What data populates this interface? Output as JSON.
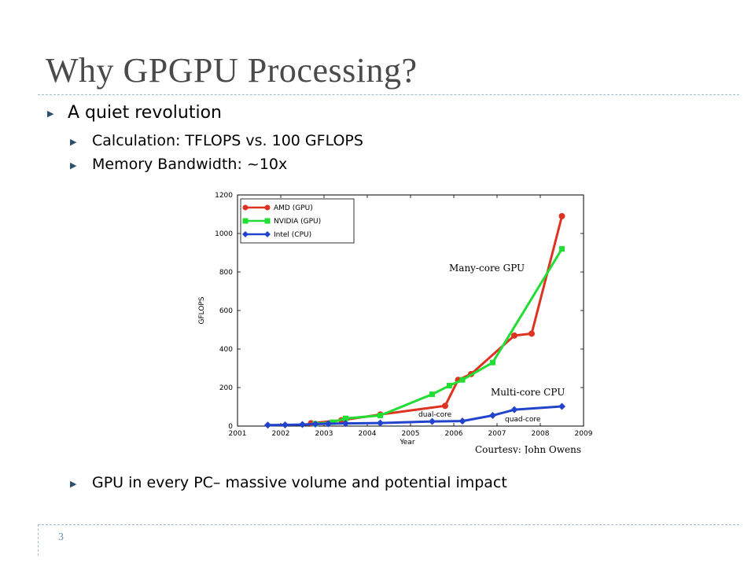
{
  "slide": {
    "title": "Why GPGPU Processing?",
    "page_number": "3",
    "bullets": {
      "b1": "A quiet revolution",
      "b2": "Calculation: TFLOPS vs. 100 GFLOPS",
      "b3": "Memory Bandwidth: ~10x",
      "b4": "GPU in every PC– massive volume and potential impact"
    },
    "colors": {
      "title": "#4a4a4a",
      "bullet_arrow": "#2c4f6b",
      "rule": "#9eb9c9"
    }
  },
  "chart_data": {
    "type": "line",
    "xlabel": "Year",
    "ylabel": "GFLOPS",
    "xlim": [
      2001,
      2009
    ],
    "ylim": [
      0,
      1200
    ],
    "xticks": [
      "2001",
      "2002",
      "2003",
      "2004",
      "2005",
      "2006",
      "2007",
      "2008",
      "2009"
    ],
    "yticks": [
      "0",
      "200",
      "400",
      "600",
      "800",
      "1000",
      "1200"
    ],
    "grid": false,
    "legend_position": "top-left",
    "series": [
      {
        "name": "AMD (GPU)",
        "color": "#dd3322",
        "marker": "circle",
        "points": [
          [
            2002.7,
            15
          ],
          [
            2003.4,
            30
          ],
          [
            2004.3,
            60
          ],
          [
            2005.8,
            105
          ],
          [
            2006.1,
            240
          ],
          [
            2006.4,
            270
          ],
          [
            2007.4,
            470
          ],
          [
            2007.8,
            480
          ],
          [
            2008.5,
            1090
          ]
        ]
      },
      {
        "name": "NVIDIA (GPU)",
        "color": "#22dd33",
        "marker": "square",
        "points": [
          [
            2002.8,
            12
          ],
          [
            2003.2,
            20
          ],
          [
            2003.5,
            40
          ],
          [
            2004.3,
            55
          ],
          [
            2005.5,
            165
          ],
          [
            2005.9,
            210
          ],
          [
            2006.2,
            240
          ],
          [
            2006.9,
            330
          ],
          [
            2008.5,
            920
          ]
        ]
      },
      {
        "name": "Intel (CPU)",
        "color": "#2244cc",
        "marker": "diamond",
        "points": [
          [
            2001.7,
            5
          ],
          [
            2002.1,
            6
          ],
          [
            2002.5,
            8
          ],
          [
            2002.8,
            10
          ],
          [
            2003.1,
            12
          ],
          [
            2003.5,
            14
          ],
          [
            2004.3,
            16
          ],
          [
            2005.5,
            24
          ],
          [
            2006.2,
            26
          ],
          [
            2006.9,
            55
          ],
          [
            2007.4,
            85
          ],
          [
            2008.5,
            102
          ]
        ]
      }
    ],
    "annotations": {
      "many_core_gpu": {
        "text": "Many-core GPU",
        "x": 2007.9,
        "y": 800
      },
      "multi_core_cpu": {
        "text": "Multi-core CPU",
        "x": 2007.9,
        "y": 185
      },
      "dual_core": {
        "text": "dual-core",
        "x": 2005.8,
        "y": 60
      },
      "quad_core": {
        "text": "quad-core",
        "x": 2007.7,
        "y": 40
      },
      "courtesy": {
        "text": "Courtesy: John Owens"
      }
    }
  }
}
